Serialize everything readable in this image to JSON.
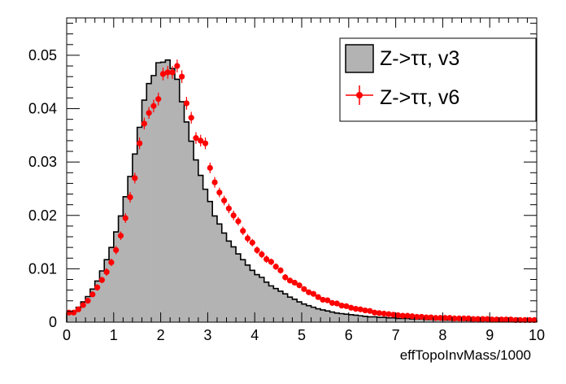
{
  "chart_data": {
    "type": "bar",
    "title": "",
    "xlabel": "effTopoInvMass/1000",
    "ylabel": "",
    "xlim": [
      0,
      10
    ],
    "ylim": [
      0,
      0.057
    ],
    "x_ticks": [
      "0",
      "1",
      "2",
      "3",
      "4",
      "5",
      "6",
      "7",
      "8",
      "9",
      "10"
    ],
    "y_ticks": [
      "0",
      "0.01",
      "0.02",
      "0.03",
      "0.04",
      "0.05"
    ],
    "legend_position": "top-right",
    "bin_width": 0.1,
    "series": [
      {
        "name": "Z->ττ, v3",
        "style": "filled-histogram",
        "fill_color": "#b3b3b3",
        "line_color": "#000000",
        "values": [
          0.0016,
          0.002,
          0.0028,
          0.0038,
          0.0048,
          0.0062,
          0.0077,
          0.0096,
          0.0117,
          0.014,
          0.0169,
          0.0199,
          0.0235,
          0.0273,
          0.0315,
          0.0365,
          0.0416,
          0.0447,
          0.0462,
          0.0486,
          0.0487,
          0.0491,
          0.0475,
          0.0455,
          0.0413,
          0.0375,
          0.0339,
          0.0304,
          0.0275,
          0.0249,
          0.0226,
          0.0199,
          0.0184,
          0.0167,
          0.0152,
          0.0141,
          0.0128,
          0.0117,
          0.0107,
          0.0097,
          0.0089,
          0.0084,
          0.0075,
          0.0068,
          0.0063,
          0.0058,
          0.0053,
          0.0047,
          0.0043,
          0.0038,
          0.0034,
          0.0031,
          0.0028,
          0.0025,
          0.0023,
          0.0021,
          0.0019,
          0.0017,
          0.0016,
          0.0015,
          0.0014,
          0.0013,
          0.0012,
          0.0011,
          0.001,
          0.001,
          0.0009,
          0.0009,
          0.0008,
          0.0008,
          0.0007,
          0.0007,
          0.0007,
          0.0006,
          0.0006,
          0.0006,
          0.0005,
          0.0005,
          0.0005,
          0.0005,
          0.0004,
          0.0004,
          0.0004,
          0.0004,
          0.0004,
          0.0003,
          0.0003,
          0.0003,
          0.0003,
          0.0003,
          0.0003,
          0.0003,
          0.0002,
          0.0002,
          0.0002,
          0.0002,
          0.0002,
          0.0002,
          0.0002,
          0.0002
        ]
      },
      {
        "name": "Z->ττ, v6",
        "style": "points-with-errors",
        "color": "#ff0000",
        "values": [
          0.0018,
          0.0018,
          0.0024,
          0.0032,
          0.004,
          0.0052,
          0.0065,
          0.0079,
          0.0094,
          0.0112,
          0.0135,
          0.0162,
          0.0195,
          0.0234,
          0.027,
          0.0335,
          0.0372,
          0.0392,
          0.0405,
          0.0418,
          0.0465,
          0.0468,
          0.0468,
          0.048,
          0.046,
          0.041,
          0.0383,
          0.0345,
          0.034,
          0.0335,
          0.0289,
          0.0262,
          0.0243,
          0.0228,
          0.0213,
          0.02,
          0.0189,
          0.0171,
          0.0157,
          0.0149,
          0.0135,
          0.0127,
          0.0118,
          0.0113,
          0.0104,
          0.0097,
          0.0084,
          0.0078,
          0.0074,
          0.0069,
          0.0062,
          0.0056,
          0.0053,
          0.0047,
          0.0042,
          0.0041,
          0.0036,
          0.0035,
          0.0031,
          0.003,
          0.0027,
          0.0025,
          0.0024,
          0.0022,
          0.0021,
          0.0018,
          0.0017,
          0.0016,
          0.0015,
          0.0014,
          0.0013,
          0.0012,
          0.0012,
          0.0011,
          0.001,
          0.001,
          0.0009,
          0.0009,
          0.0008,
          0.0008,
          0.0008,
          0.0008,
          0.0007,
          0.0007,
          0.0007,
          0.0007,
          0.0006,
          0.0006,
          0.0006,
          0.0006,
          0.0005,
          0.0005,
          0.0005,
          0.0005,
          0.0005,
          0.0004,
          0.0004,
          0.0004,
          0.0004,
          0.0004
        ],
        "errors": [
          0.0004,
          0.0004,
          0.0004,
          0.0005,
          0.0005,
          0.0005,
          0.0006,
          0.0006,
          0.0007,
          0.0007,
          0.0008,
          0.0008,
          0.0009,
          0.001,
          0.001,
          0.0011,
          0.0011,
          0.0011,
          0.0012,
          0.0012,
          0.0012,
          0.0012,
          0.0012,
          0.0012,
          0.0012,
          0.0012,
          0.0011,
          0.0011,
          0.0011,
          0.0011,
          0.001,
          0.001,
          0.0009,
          0.0009,
          0.0009,
          0.0009,
          0.0008,
          0.0008,
          0.0008,
          0.0007,
          0.0007,
          0.0007,
          0.0007,
          0.0006,
          0.0006,
          0.0006,
          0.0006,
          0.0005,
          0.0005,
          0.0005,
          0.0005,
          0.0005,
          0.0004,
          0.0004,
          0.0004,
          0.0004,
          0.0004,
          0.0004,
          0.0003,
          0.0003,
          0.0003,
          0.0003,
          0.0003,
          0.0003,
          0.0003,
          0.0003,
          0.0003,
          0.0003,
          0.0003,
          0.0003,
          0.0002,
          0.0002,
          0.0002,
          0.0002,
          0.0002,
          0.0002,
          0.0002,
          0.0002,
          0.0002,
          0.0002,
          0.0002,
          0.0002,
          0.0002,
          0.0002,
          0.0002,
          0.0002,
          0.0002,
          0.0002,
          0.0002,
          0.0002,
          0.0002,
          0.0002,
          0.0002,
          0.0002,
          0.0002,
          0.0002,
          0.0002,
          0.0002,
          0.0002,
          0.0002
        ]
      }
    ]
  }
}
